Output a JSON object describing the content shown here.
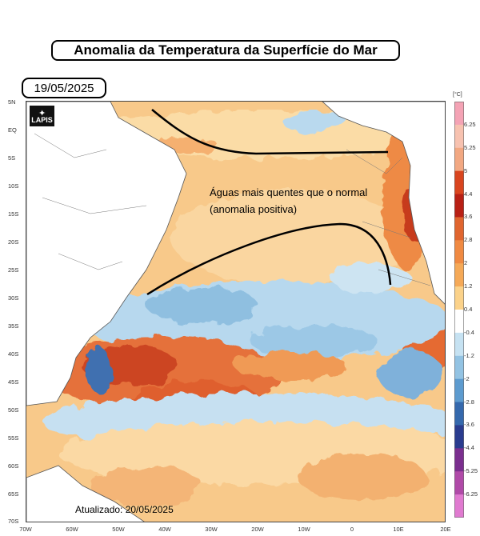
{
  "title": "Anomalia da Temperatura da Superfície do Mar",
  "date": "19/05/2025",
  "updated": "Atualizado: 20/05/2025",
  "annotation": "Águas mais quentes que o normal (anomalia positiva)",
  "logo": {
    "text": "LAPIS",
    "icon": "satellite-icon"
  },
  "map": {
    "latitude_labels": [
      "5N",
      "EQ",
      "5S",
      "10S",
      "15S",
      "20S",
      "25S",
      "30S",
      "35S",
      "40S",
      "45S",
      "50S",
      "55S",
      "60S",
      "65S",
      "70S"
    ],
    "longitude_labels": [
      "70W",
      "60W",
      "50W",
      "40W",
      "30W",
      "20W",
      "10W",
      "0",
      "10E",
      "20E"
    ]
  },
  "colorbar": {
    "unit": "[°C]",
    "ticks": [
      "6.25",
      "5.25",
      "5",
      "4.4",
      "3.6",
      "2.8",
      "2",
      "1.2",
      "0.4",
      "-0.4",
      "-1.2",
      "-2",
      "-2.8",
      "-3.6",
      "-4.4",
      "-5.25",
      "-6.25"
    ],
    "colors": [
      "#f4a3b5",
      "#f7c2b0",
      "#f2a882",
      "#d9451f",
      "#b82015",
      "#e0652f",
      "#f08a42",
      "#f5a957",
      "#fbd28a",
      "#ffffff",
      "#c6e2f2",
      "#93c3e3",
      "#5d9bcf",
      "#3569ad",
      "#2a3c8f",
      "#7b2f8f",
      "#b04aa8",
      "#e07ad0"
    ]
  }
}
